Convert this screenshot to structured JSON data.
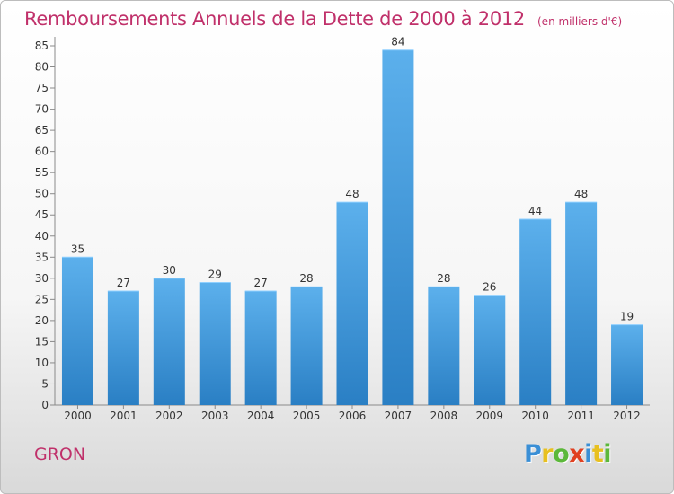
{
  "header": {
    "title": "Remboursements Annuels de la Dette de 2000 à 2012",
    "unit": "(en milliers d'€)"
  },
  "footer": {
    "city": "GRON",
    "logo_letters": [
      "P",
      "r",
      "o",
      "x",
      "i",
      "t",
      "i"
    ],
    "logo_colors": [
      "#3a8fd6",
      "#e8c020",
      "#5cb83a",
      "#e04020",
      "#3a8fd6",
      "#e8c020",
      "#5cb83a"
    ]
  },
  "chart_data": {
    "type": "bar",
    "title": "Remboursements Annuels de la Dette de 2000 à 2012",
    "subtitle": "(en milliers d'€)",
    "categories": [
      "2000",
      "2001",
      "2002",
      "2003",
      "2004",
      "2005",
      "2006",
      "2007",
      "2008",
      "2009",
      "2010",
      "2011",
      "2012"
    ],
    "values": [
      35,
      27,
      30,
      29,
      27,
      28,
      48,
      84,
      28,
      26,
      44,
      48,
      19
    ],
    "ylim": [
      0,
      85
    ],
    "yticks": [
      0,
      5,
      10,
      15,
      20,
      25,
      30,
      35,
      40,
      45,
      50,
      55,
      60,
      65,
      70,
      75,
      80,
      85
    ],
    "grid": false,
    "bar_color_top": "#5cb0ec",
    "bar_color_bottom": "#2a7fc4"
  }
}
